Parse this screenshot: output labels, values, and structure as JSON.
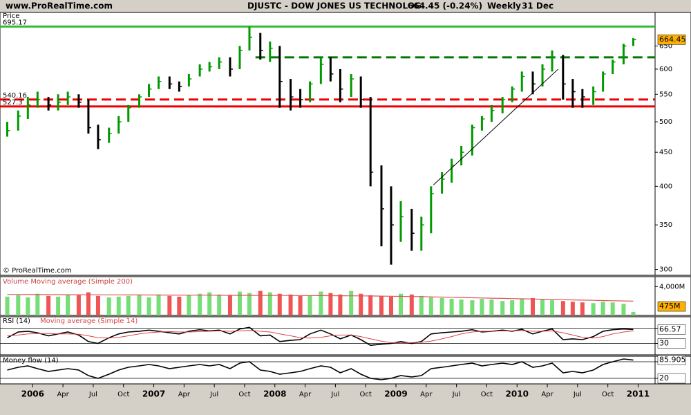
{
  "header": {
    "site": "www.ProRealTime.com",
    "symbol": "DJUSTC - DOW JONES US TECHNOLOG",
    "quote": "664.45 (-0.24%)",
    "period": "Weekly",
    "date": "31 Dec"
  },
  "copyright": "© ProRealTime.com",
  "chart_data": [
    {
      "type": "hlc",
      "title": "Price",
      "log_scale": true,
      "xlim": [
        2005.73,
        2011.14
      ],
      "xticks": [
        2006,
        {
          "value": 2006.25,
          "label": "Apr"
        },
        {
          "value": 2006.5,
          "label": "Jul"
        },
        {
          "value": 2006.75,
          "label": "Oct"
        },
        2007,
        {
          "value": 2007.25,
          "label": "Apr"
        },
        {
          "value": 2007.5,
          "label": "Jul"
        },
        {
          "value": 2007.75,
          "label": "Oct"
        },
        2008,
        {
          "value": 2008.25,
          "label": "Apr"
        },
        {
          "value": 2008.5,
          "label": "Jul"
        },
        {
          "value": 2008.75,
          "label": "Oct"
        },
        2009,
        {
          "value": 2009.25,
          "label": "Apr"
        },
        {
          "value": 2009.5,
          "label": "Jul"
        },
        {
          "value": 2009.75,
          "label": "Oct"
        },
        2010,
        {
          "value": 2010.25,
          "label": "Apr"
        },
        {
          "value": 2010.5,
          "label": "Jul"
        },
        {
          "value": 2010.75,
          "label": "Oct"
        },
        2011
      ],
      "ylim": [
        294,
        730
      ],
      "yticks": [
        300,
        350,
        400,
        450,
        500,
        550,
        600,
        650
      ],
      "x": [
        2005.79,
        2005.88,
        2005.96,
        2006.04,
        2006.13,
        2006.21,
        2006.29,
        2006.38,
        2006.46,
        2006.54,
        2006.63,
        2006.71,
        2006.79,
        2006.88,
        2006.96,
        2007.04,
        2007.13,
        2007.21,
        2007.29,
        2007.38,
        2007.46,
        2007.54,
        2007.63,
        2007.71,
        2007.79,
        2007.88,
        2007.96,
        2008.04,
        2008.13,
        2008.21,
        2008.29,
        2008.38,
        2008.46,
        2008.54,
        2008.63,
        2008.71,
        2008.79,
        2008.88,
        2008.96,
        2009.04,
        2009.13,
        2009.21,
        2009.29,
        2009.38,
        2009.46,
        2009.54,
        2009.63,
        2009.71,
        2009.79,
        2009.88,
        2009.96,
        2010.04,
        2010.13,
        2010.21,
        2010.29,
        2010.38,
        2010.46,
        2010.54,
        2010.63,
        2010.71,
        2010.79,
        2010.88,
        2010.96
      ],
      "high": [
        500,
        520,
        545,
        555,
        545,
        550,
        555,
        550,
        540,
        495,
        490,
        510,
        530,
        550,
        570,
        585,
        585,
        575,
        590,
        610,
        615,
        625,
        625,
        650,
        695,
        680,
        660,
        650,
        580,
        560,
        575,
        625,
        625,
        600,
        590,
        585,
        545,
        430,
        400,
        380,
        370,
        360,
        400,
        420,
        440,
        460,
        495,
        510,
        530,
        545,
        565,
        595,
        595,
        610,
        640,
        630,
        580,
        560,
        565,
        595,
        620,
        655,
        668
      ],
      "low": [
        475,
        485,
        505,
        525,
        520,
        520,
        530,
        525,
        480,
        455,
        465,
        480,
        500,
        525,
        545,
        560,
        560,
        555,
        565,
        585,
        595,
        600,
        585,
        600,
        640,
        620,
        615,
        525,
        520,
        525,
        535,
        570,
        575,
        535,
        545,
        525,
        400,
        325,
        305,
        330,
        320,
        320,
        340,
        390,
        405,
        430,
        445,
        485,
        500,
        515,
        535,
        555,
        550,
        565,
        595,
        540,
        525,
        525,
        530,
        555,
        590,
        610,
        650
      ],
      "close": [
        485,
        510,
        530,
        540,
        530,
        535,
        545,
        535,
        490,
        470,
        480,
        500,
        525,
        545,
        560,
        575,
        570,
        565,
        580,
        600,
        605,
        615,
        600,
        640,
        670,
        640,
        645,
        575,
        545,
        540,
        570,
        610,
        590,
        560,
        580,
        540,
        420,
        370,
        350,
        360,
        340,
        350,
        390,
        410,
        430,
        450,
        490,
        505,
        520,
        540,
        560,
        585,
        570,
        600,
        625,
        570,
        555,
        545,
        555,
        590,
        615,
        650,
        664.45
      ],
      "up_color": "#009900",
      "down_color": "#000000",
      "last_color": "#ffb000",
      "levels": [
        {
          "value": 695.17,
          "label": "695.17",
          "color": "#33bb33",
          "style": "solid"
        },
        {
          "value": 625,
          "color": "#007700",
          "style": "dashed",
          "x_start": 2007.84
        },
        {
          "value": 540.16,
          "label": "540.16",
          "color": "#ee0000",
          "style": "dashed"
        },
        {
          "value": 527.3,
          "label": "527.3",
          "color": "#ee0000",
          "style": "solid"
        }
      ],
      "trendline": {
        "x": [
          2009.31,
          2010.34
        ],
        "y": [
          402,
          600
        ],
        "color": "#000000"
      }
    },
    {
      "type": "bar",
      "title": "Volume Moving average (Simple 200)",
      "ylim": [
        0,
        5370
      ],
      "yticks": [
        {
          "value": 4000,
          "label": "4,000M"
        }
      ],
      "values": [
        2600,
        2800,
        2500,
        3000,
        2700,
        2600,
        2900,
        2800,
        3200,
        2700,
        2500,
        2600,
        2700,
        2800,
        2500,
        2900,
        2700,
        2600,
        2800,
        3000,
        3200,
        2900,
        2800,
        3300,
        3100,
        3400,
        3200,
        3000,
        2900,
        2700,
        2800,
        3300,
        3100,
        2900,
        3400,
        3000,
        2800,
        2700,
        2600,
        3000,
        2900,
        2700,
        2500,
        2400,
        2300,
        2200,
        2100,
        2300,
        2200,
        2000,
        2100,
        2300,
        2400,
        2200,
        2100,
        2000,
        1900,
        1800,
        1700,
        1900,
        1800,
        1600,
        475
      ],
      "ma": [
        2900,
        2895,
        2890,
        2885,
        2880,
        2875,
        2870,
        2865,
        2860,
        2855,
        2850,
        2845,
        2840,
        2835,
        2830,
        2825,
        2820,
        2815,
        2810,
        2805,
        2800,
        2795,
        2790,
        2785,
        2780,
        2775,
        2770,
        2765,
        2760,
        2755,
        2750,
        2740,
        2730,
        2720,
        2710,
        2700,
        2690,
        2680,
        2660,
        2640,
        2620,
        2600,
        2570,
        2540,
        2510,
        2480,
        2450,
        2420,
        2390,
        2360,
        2330,
        2300,
        2270,
        2240,
        2210,
        2180,
        2150,
        2120,
        2090,
        2060,
        2030,
        2000,
        1980
      ],
      "up_color": "#77dd77",
      "down_color": "#ee5555",
      "ma_color": "#dd5555",
      "marker": {
        "value": 475,
        "label": "475M"
      }
    },
    {
      "type": "line",
      "ylim": [
        0,
        100
      ],
      "yticks": [
        30,
        70
      ],
      "series": [
        {
          "name": "RSI (14)",
          "color": "#000000",
          "values": [
            45,
            60,
            62,
            58,
            50,
            55,
            60,
            52,
            35,
            30,
            45,
            55,
            60,
            62,
            65,
            62,
            58,
            55,
            62,
            66,
            63,
            65,
            55,
            68,
            72,
            50,
            52,
            35,
            38,
            40,
            55,
            65,
            55,
            42,
            52,
            40,
            25,
            28,
            30,
            35,
            30,
            35,
            55,
            58,
            60,
            62,
            66,
            60,
            62,
            65,
            62,
            67,
            55,
            62,
            68,
            40,
            42,
            40,
            48,
            62,
            66,
            68,
            66.57
          ]
        },
        {
          "name": "Moving average (Simple 14)",
          "color": "#dd4444",
          "values": [
            50,
            52,
            55,
            56,
            56,
            55,
            55,
            54,
            50,
            45,
            44,
            46,
            50,
            55,
            58,
            60,
            61,
            60,
            60,
            61,
            62,
            63,
            62,
            63,
            64,
            62,
            60,
            55,
            50,
            45,
            44,
            46,
            50,
            52,
            52,
            48,
            42,
            36,
            32,
            31,
            32,
            33,
            36,
            42,
            48,
            55,
            60,
            62,
            62,
            63,
            63,
            64,
            62,
            62,
            63,
            58,
            52,
            46,
            44,
            48,
            55,
            60,
            63
          ]
        }
      ]
    },
    {
      "type": "line",
      "ylim": [
        0,
        100
      ],
      "yticks": [
        20,
        80
      ],
      "series": [
        {
          "name": "Money flow (14)",
          "color": "#000000",
          "values": [
            50,
            60,
            65,
            55,
            45,
            50,
            55,
            50,
            30,
            20,
            35,
            50,
            60,
            65,
            70,
            65,
            55,
            60,
            65,
            70,
            65,
            70,
            55,
            75,
            80,
            50,
            45,
            35,
            40,
            45,
            55,
            65,
            60,
            40,
            55,
            35,
            20,
            15,
            20,
            30,
            25,
            30,
            55,
            60,
            65,
            70,
            75,
            65,
            70,
            75,
            70,
            80,
            60,
            65,
            75,
            40,
            45,
            40,
            50,
            70,
            80,
            90,
            85.905
          ]
        }
      ]
    }
  ]
}
